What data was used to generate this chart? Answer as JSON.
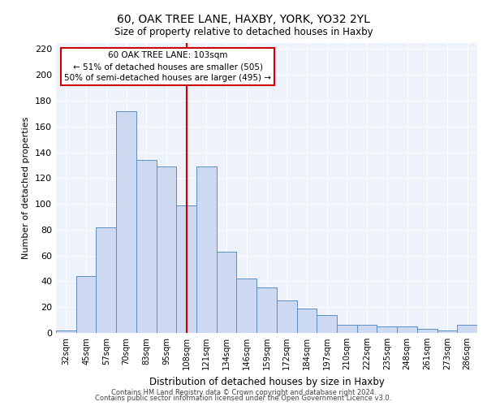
{
  "title": "60, OAK TREE LANE, HAXBY, YORK, YO32 2YL",
  "subtitle": "Size of property relative to detached houses in Haxby",
  "xlabel": "Distribution of detached houses by size in Haxby",
  "ylabel": "Number of detached properties",
  "bar_labels": [
    "32sqm",
    "45sqm",
    "57sqm",
    "70sqm",
    "83sqm",
    "95sqm",
    "108sqm",
    "121sqm",
    "134sqm",
    "146sqm",
    "159sqm",
    "172sqm",
    "184sqm",
    "197sqm",
    "210sqm",
    "222sqm",
    "235sqm",
    "248sqm",
    "261sqm",
    "273sqm",
    "286sqm"
  ],
  "bar_values": [
    2,
    44,
    82,
    172,
    134,
    129,
    99,
    129,
    63,
    42,
    35,
    25,
    19,
    14,
    6,
    6,
    5,
    5,
    3,
    2,
    6
  ],
  "bar_color": "#ccd9f0",
  "bar_edge_color": "#5b8ec4",
  "vline_x": 6.0,
  "vline_color": "#cc0000",
  "ylim": [
    0,
    225
  ],
  "yticks": [
    0,
    20,
    40,
    60,
    80,
    100,
    120,
    140,
    160,
    180,
    200,
    220
  ],
  "annotation_box_text": "60 OAK TREE LANE: 103sqm\n← 51% of detached houses are smaller (505)\n50% of semi-detached houses are larger (495) →",
  "annotation_box_color": "#cc0000",
  "footer_line1": "Contains HM Land Registry data © Crown copyright and database right 2024.",
  "footer_line2": "Contains public sector information licensed under the Open Government Licence v3.0.",
  "bg_color": "#eef2fb",
  "fig_bg_color": "#ffffff",
  "grid_color": "#ffffff"
}
